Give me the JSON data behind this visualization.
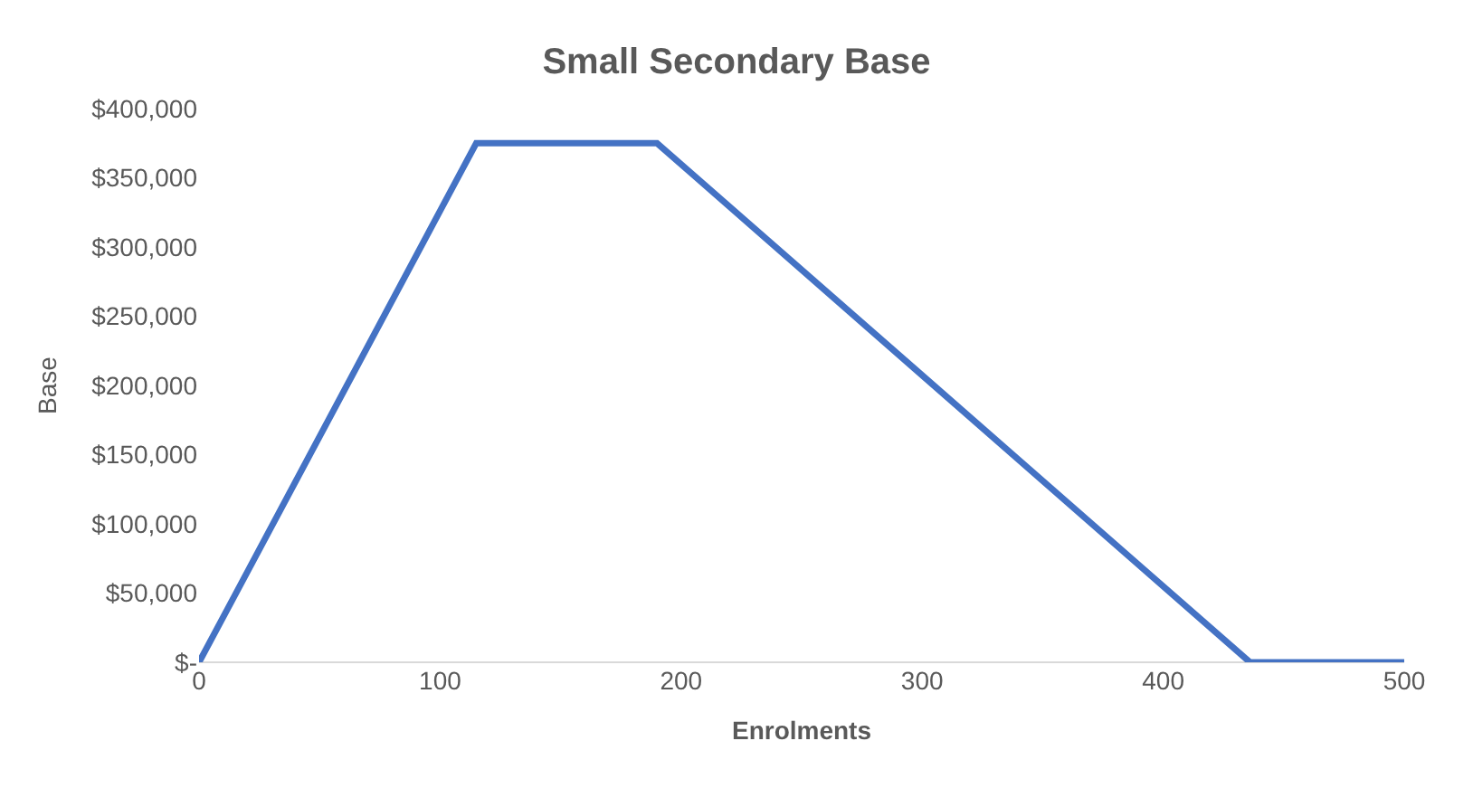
{
  "chart_data": {
    "type": "line",
    "title": "Small Secondary Base",
    "xlabel": "Enrolments",
    "ylabel": "Base",
    "x": [
      0,
      115,
      190,
      436,
      500
    ],
    "series": [
      {
        "color": "#4472c4",
        "values": [
          0,
          375000,
          375000,
          0,
          0
        ]
      }
    ],
    "xlim": [
      0,
      500
    ],
    "xticks": [
      0,
      100,
      200,
      300,
      400,
      500
    ],
    "ylim": [
      0,
      400000
    ],
    "yticks": [
      {
        "value": 0,
        "label": "$-"
      },
      {
        "value": 50000,
        "label": "$50,000"
      },
      {
        "value": 100000,
        "label": "$100,000"
      },
      {
        "value": 150000,
        "label": "$150,000"
      },
      {
        "value": 200000,
        "label": "$200,000"
      },
      {
        "value": 250000,
        "label": "$250,000"
      },
      {
        "value": 300000,
        "label": "$300,000"
      },
      {
        "value": 350000,
        "label": "$350,000"
      },
      {
        "value": 400000,
        "label": "$400,000"
      }
    ],
    "grid": false,
    "marker": "none",
    "line_style": "solid"
  }
}
